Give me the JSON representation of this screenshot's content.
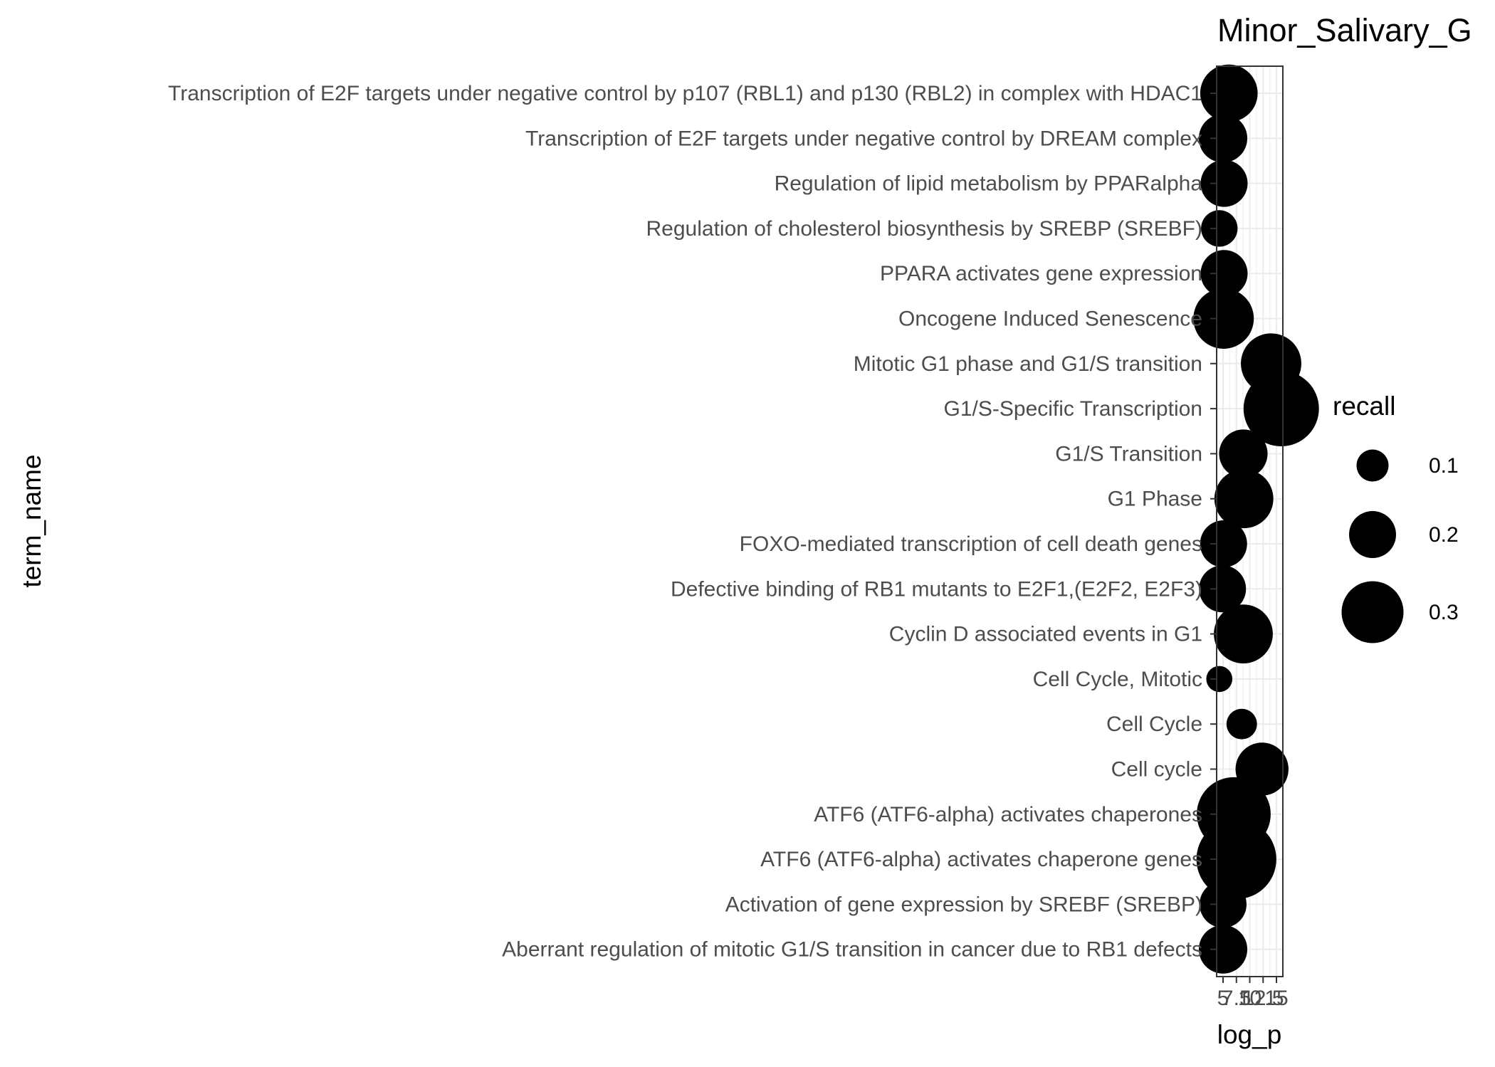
{
  "chart_data": {
    "type": "scatter",
    "title": "Minor_Salivary_G",
    "xlabel": "log_p",
    "ylabel": "term_name",
    "x_ticks": [
      "5",
      "7.5",
      "10",
      "12.5",
      "15"
    ],
    "xlim": [
      3.8,
      16.2
    ],
    "grid": true,
    "size_legend": {
      "title": "recall",
      "entries": [
        {
          "label": "0.1",
          "value": 0.1
        },
        {
          "label": "0.2",
          "value": 0.2
        },
        {
          "label": "0.3",
          "value": 0.3
        }
      ]
    },
    "color": "#000000",
    "points": [
      {
        "term": "Transcription of E2F targets under negative control by p107 (RBL1) and p130 (RBL2) in complex with HDAC1",
        "log_p": 6.1,
        "recall": 0.27
      },
      {
        "term": "Transcription of E2F targets under negative control by DREAM complex",
        "log_p": 5.0,
        "recall": 0.21
      },
      {
        "term": "Regulation of lipid metabolism by PPARalpha",
        "log_p": 5.2,
        "recall": 0.2
      },
      {
        "term": "Regulation of cholesterol biosynthesis by SREBP (SREBF)",
        "log_p": 4.3,
        "recall": 0.13
      },
      {
        "term": "PPARA activates gene expression",
        "log_p": 5.2,
        "recall": 0.2
      },
      {
        "term": "Oncogene Induced Senescence",
        "log_p": 5.1,
        "recall": 0.29
      },
      {
        "term": "Mitotic G1 phase and G1/S transition",
        "log_p": 14.0,
        "recall": 0.29
      },
      {
        "term": "G1/S-Specific Transcription",
        "log_p": 15.9,
        "recall": 0.39
      },
      {
        "term": "G1/S Transition",
        "log_p": 8.8,
        "recall": 0.21
      },
      {
        "term": "G1 Phase",
        "log_p": 8.9,
        "recall": 0.28
      },
      {
        "term": "FOXO-mediated transcription of cell death genes",
        "log_p": 5.1,
        "recall": 0.2
      },
      {
        "term": "Defective binding of RB1 mutants to E2F1,(E2F2, E2F3)",
        "log_p": 4.9,
        "recall": 0.2
      },
      {
        "term": "Cyclin D associated events in G1",
        "log_p": 8.8,
        "recall": 0.28
      },
      {
        "term": "Cell Cycle, Mitotic",
        "log_p": 4.3,
        "recall": 0.06
      },
      {
        "term": "Cell Cycle",
        "log_p": 8.5,
        "recall": 0.09
      },
      {
        "term": "Cell cycle",
        "log_p": 12.3,
        "recall": 0.24
      },
      {
        "term": "ATF6 (ATF6-alpha) activates chaperones",
        "log_p": 7.0,
        "recall": 0.38
      },
      {
        "term": "ATF6 (ATF6-alpha) activates chaperone genes",
        "log_p": 7.5,
        "recall": 0.42
      },
      {
        "term": "Activation of gene expression by SREBF (SREBP)",
        "log_p": 5.0,
        "recall": 0.2
      },
      {
        "term": "Aberrant regulation of mitotic G1/S transition in cancer due to RB1 defects",
        "log_p": 5.0,
        "recall": 0.21
      }
    ]
  }
}
